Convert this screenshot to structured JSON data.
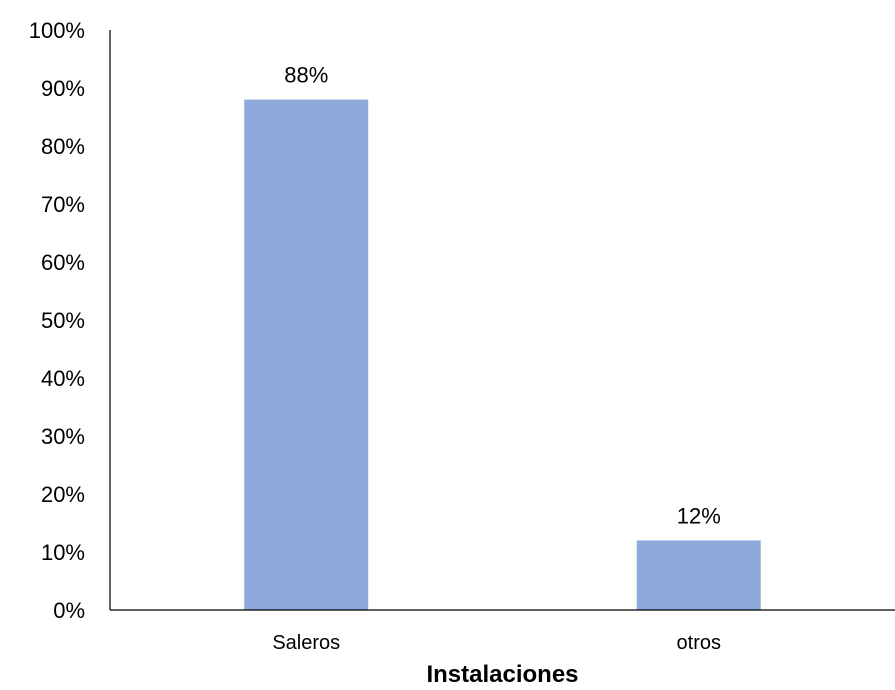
{
  "chart_data": {
    "type": "bar",
    "categories": [
      "Saleros",
      "otros"
    ],
    "values": [
      88,
      12
    ],
    "data_labels": [
      "88%",
      "12%"
    ],
    "title": "",
    "xlabel": "Instalaciones",
    "ylabel": "",
    "ylim": [
      0,
      100
    ],
    "y_ticks": [
      0,
      10,
      20,
      30,
      40,
      50,
      60,
      70,
      80,
      90,
      100
    ],
    "y_tick_labels": [
      "0%",
      "10%",
      "20%",
      "30%",
      "40%",
      "50%",
      "60%",
      "70%",
      "80%",
      "90%",
      "100%"
    ],
    "grid": false,
    "legend": "none",
    "bar_color": "#8EAADB"
  }
}
